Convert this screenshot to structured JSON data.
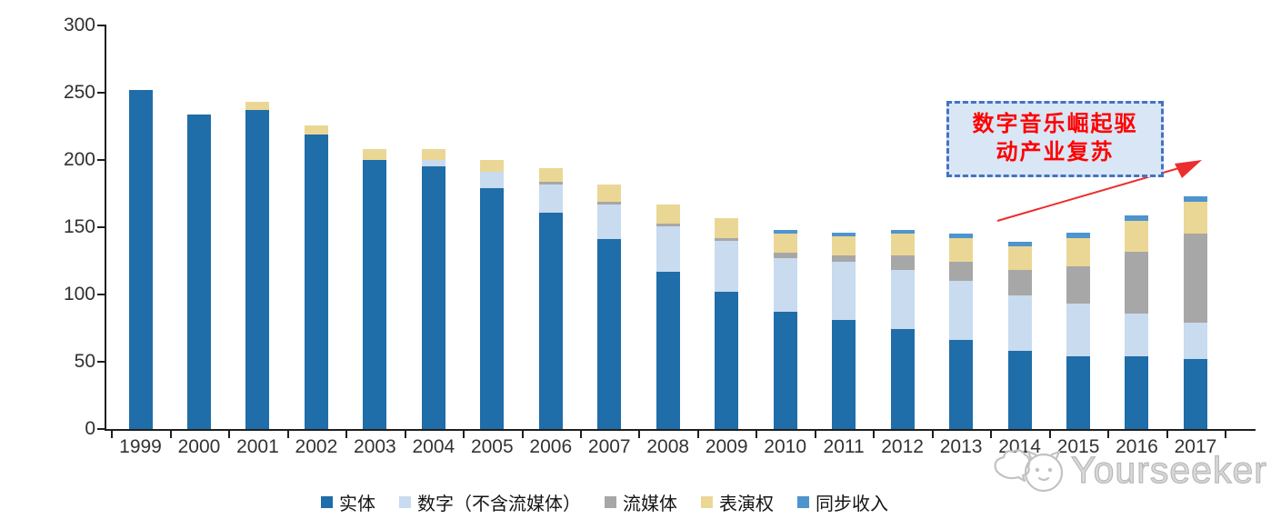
{
  "chart_data": {
    "type": "bar",
    "stacked": true,
    "title": "",
    "xlabel": "",
    "ylabel": "",
    "ylim": [
      0,
      300
    ],
    "yticks": [
      0,
      50,
      100,
      150,
      200,
      250,
      300
    ],
    "grid": false,
    "legend_position": "bottom",
    "categories": [
      "1999",
      "2000",
      "2001",
      "2002",
      "2003",
      "2004",
      "2005",
      "2006",
      "2007",
      "2008",
      "2009",
      "2010",
      "2011",
      "2012",
      "2013",
      "2014",
      "2015",
      "2016",
      "2017"
    ],
    "series": [
      {
        "name": "实体",
        "color": "#1F6DA9",
        "values": [
          252,
          234,
          237,
          219,
          200,
          195,
          179,
          161,
          141,
          117,
          102,
          87,
          81,
          74,
          66,
          58,
          54,
          54,
          52
        ]
      },
      {
        "name": "数字（不含流媒体）",
        "color": "#C8DBEF",
        "values": [
          0,
          0,
          0,
          0,
          0,
          5,
          12,
          21,
          26,
          34,
          38,
          40,
          43,
          44,
          44,
          41,
          39,
          32,
          27
        ]
      },
      {
        "name": "流媒体",
        "color": "#A7A7A7",
        "values": [
          0,
          0,
          0,
          0,
          0,
          0,
          0,
          2,
          2,
          2,
          2,
          4,
          5,
          11,
          14,
          19,
          28,
          46,
          66
        ]
      },
      {
        "name": "表演权",
        "color": "#EBD795",
        "values": [
          0,
          0,
          6,
          7,
          8,
          8,
          9,
          10,
          13,
          14,
          15,
          14,
          14,
          16,
          18,
          18,
          21,
          23,
          24
        ]
      },
      {
        "name": "同步收入",
        "color": "#4E94CE",
        "values": [
          0,
          0,
          0,
          0,
          0,
          0,
          0,
          0,
          0,
          0,
          0,
          3,
          3,
          3,
          3,
          3,
          4,
          4,
          4
        ]
      }
    ]
  },
  "annotation": {
    "line1": "数字音乐崛起驱",
    "line2": "动产业复苏",
    "text_color": "#FF0000",
    "box_fill": "#D9E6F5",
    "box_border": "#4472C4",
    "arrow_color": "#EC2D2D"
  },
  "watermark": {
    "text": "Yourseeker",
    "logo": "cat-doodle-icon",
    "color": "#c2c2c2"
  }
}
